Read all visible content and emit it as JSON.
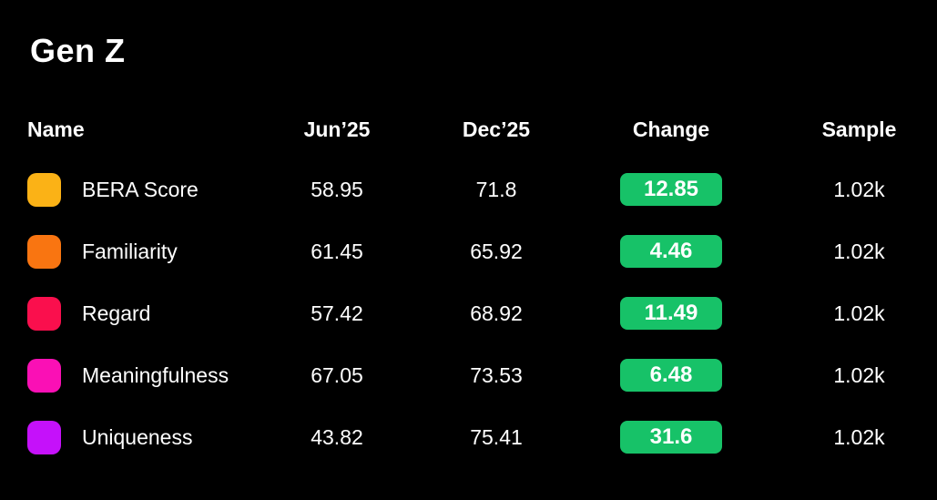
{
  "title": "Gen Z",
  "colors": {
    "background": "#000000",
    "text": "#FFFFFF",
    "change_badge_background": "#17C268",
    "change_badge_text": "#FFFFFF"
  },
  "chart_data": {
    "type": "table",
    "title": "Gen Z",
    "columns": {
      "name": "Name",
      "jun25": "Jun’25",
      "dec25": "Dec’25",
      "change": "Change",
      "sample": "Sample"
    },
    "column_order": [
      "name",
      "jun25",
      "dec25",
      "change",
      "sample"
    ],
    "rows": [
      {
        "name": "BERA Score",
        "swatch_color": "#FBB216",
        "jun25": "58.95",
        "dec25": "71.8",
        "change": "12.85",
        "sample": "1.02k"
      },
      {
        "name": "Familiarity",
        "swatch_color": "#F97511",
        "jun25": "61.45",
        "dec25": "65.92",
        "change": "4.46",
        "sample": "1.02k"
      },
      {
        "name": "Regard",
        "swatch_color": "#FA0F4D",
        "jun25": "57.42",
        "dec25": "68.92",
        "change": "11.49",
        "sample": "1.02k"
      },
      {
        "name": "Meaningfulness",
        "swatch_color": "#FA10B5",
        "jun25": "67.05",
        "dec25": "73.53",
        "change": "6.48",
        "sample": "1.02k"
      },
      {
        "name": "Uniqueness",
        "swatch_color": "#C511FA",
        "jun25": "43.82",
        "dec25": "75.41",
        "change": "31.6",
        "sample": "1.02k"
      }
    ]
  }
}
